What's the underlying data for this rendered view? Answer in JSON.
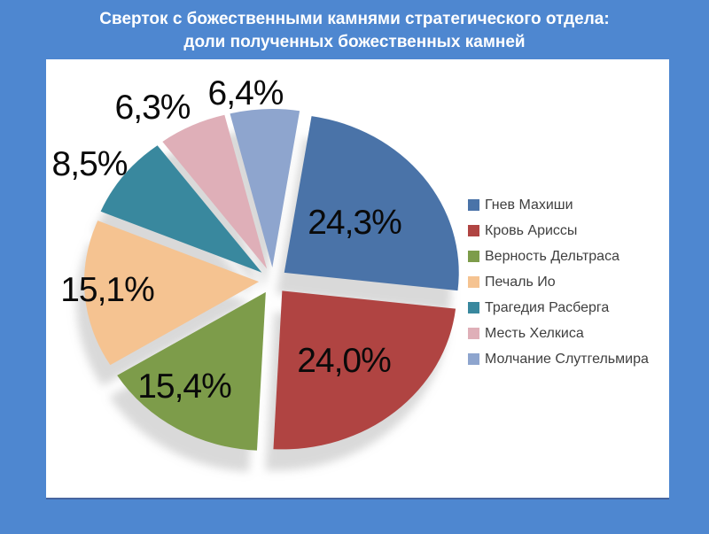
{
  "window": {
    "background_color": "#4e87d0",
    "panel_color": "#ffffff"
  },
  "title": {
    "line1": "Сверток с божественными камнями стратегического отдела:",
    "line2": "доли полученных божественных камней",
    "color": "#ffffff"
  },
  "chart_data": {
    "type": "pie",
    "title": "Сверток с божественными камнями стратегического отдела: доли полученных божественных камней",
    "legend_position": "right",
    "exploded": true,
    "start_angle_deg": 9,
    "series": [
      {
        "label": "Гнев Махиши",
        "value": 24.3,
        "display_value": "24,3%",
        "color": "#4a73a8",
        "label_placement": "inside"
      },
      {
        "label": "Кровь Ариссы",
        "value": 24.0,
        "display_value": "24,0%",
        "color": "#b04442",
        "label_placement": "inside"
      },
      {
        "label": "Верность Дельтраса",
        "value": 15.4,
        "display_value": "15,4%",
        "color": "#7d9c4a",
        "label_placement": "inside"
      },
      {
        "label": "Печаль Ио",
        "value": 15.1,
        "display_value": "15,1%",
        "color": "#f5c391",
        "label_placement": "inside"
      },
      {
        "label": "Трагедия Расберга",
        "value": 8.5,
        "display_value": "8,5%",
        "color": "#39889e",
        "label_placement": "outside"
      },
      {
        "label": "Месть Хелкиса",
        "value": 6.3,
        "display_value": "6,3%",
        "color": "#dfafb8",
        "label_placement": "outside"
      },
      {
        "label": "Молчание Слутгельмира",
        "value": 6.4,
        "display_value": "6,4%",
        "color": "#8ea5ce",
        "label_placement": "outside"
      }
    ],
    "legend": {
      "text_color": "#3f3f3f"
    },
    "value_label_color": "#0a0a0a"
  }
}
